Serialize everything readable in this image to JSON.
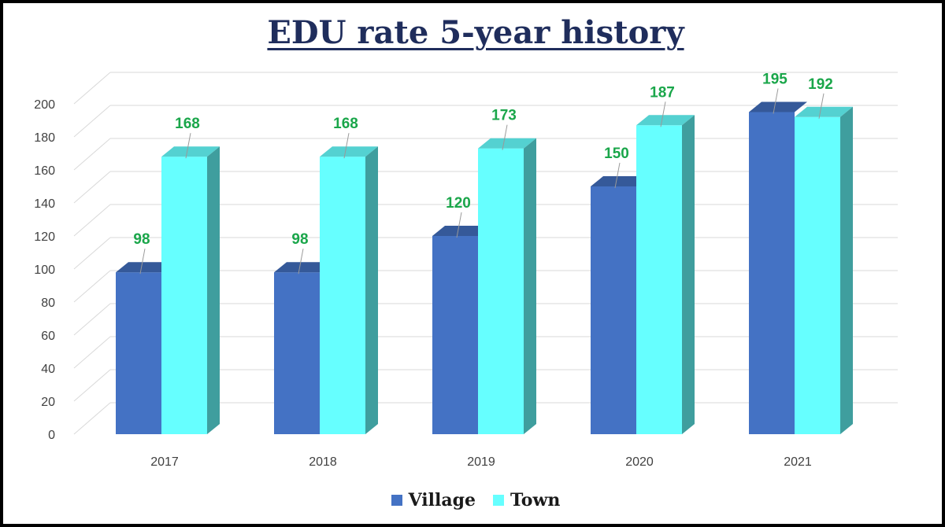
{
  "chart_data": {
    "type": "bar",
    "title": "EDU rate 5-year history",
    "categories": [
      "2017",
      "2018",
      "2019",
      "2020",
      "2021"
    ],
    "series": [
      {
        "name": "Village",
        "values": [
          98,
          98,
          120,
          150,
          195
        ],
        "color": "#4472c4"
      },
      {
        "name": "Town",
        "values": [
          168,
          168,
          173,
          187,
          192
        ],
        "color": "#66ffff"
      }
    ],
    "y_ticks": [
      "0",
      "20",
      "40",
      "60",
      "80",
      "100",
      "120",
      "140",
      "160",
      "180",
      "200"
    ],
    "ylim": [
      0,
      200
    ],
    "xlabel": "",
    "ylabel": "",
    "grid": true,
    "legend_position": "bottom",
    "data_label_color": "#1aa64a",
    "three_d": true
  }
}
